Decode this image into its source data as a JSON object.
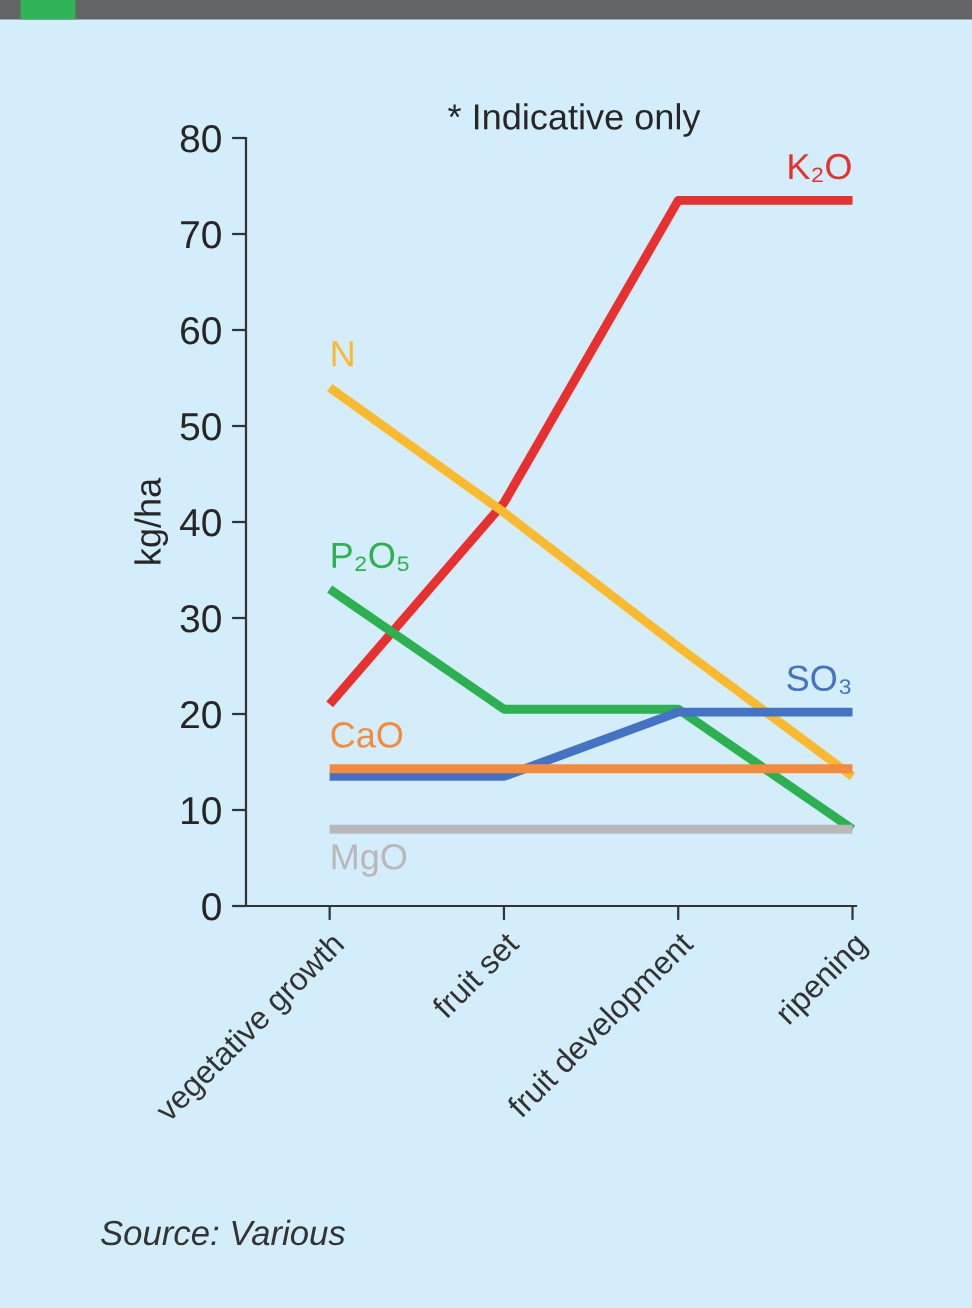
{
  "chart_data": {
    "type": "line",
    "ylabel": "kg/ha",
    "categories": [
      "vegetative growth",
      "fruit set",
      "fruit development",
      "ripening"
    ],
    "series": [
      {
        "name": "K₂O",
        "color": "#e8312f",
        "values": [
          21,
          42,
          73.5,
          73.5
        ]
      },
      {
        "name": "N",
        "color": "#fbb92e",
        "values": [
          54,
          41,
          27,
          13.5
        ]
      },
      {
        "name": "P₂O₅",
        "color": "#2bb14f",
        "values": [
          33,
          20.5,
          20.5,
          8
        ]
      },
      {
        "name": "SO₃",
        "color": "#4472c4",
        "values": [
          13.5,
          13.5,
          20.2,
          20.2
        ]
      },
      {
        "name": "CaO",
        "color": "#f58a3c",
        "values": [
          14.3,
          14.3,
          14.3,
          14.3
        ]
      },
      {
        "name": "MgO",
        "color": "#b8b8b8",
        "values": [
          8,
          8,
          8,
          8
        ]
      }
    ],
    "ylim": [
      0,
      80
    ],
    "yticks": [
      0,
      10,
      20,
      30,
      40,
      50,
      60,
      70,
      80
    ],
    "grid": false,
    "legend": false,
    "marker": "none",
    "line_style": "solid",
    "annotations": [
      "* Indicative only",
      "Source: Various"
    ]
  }
}
